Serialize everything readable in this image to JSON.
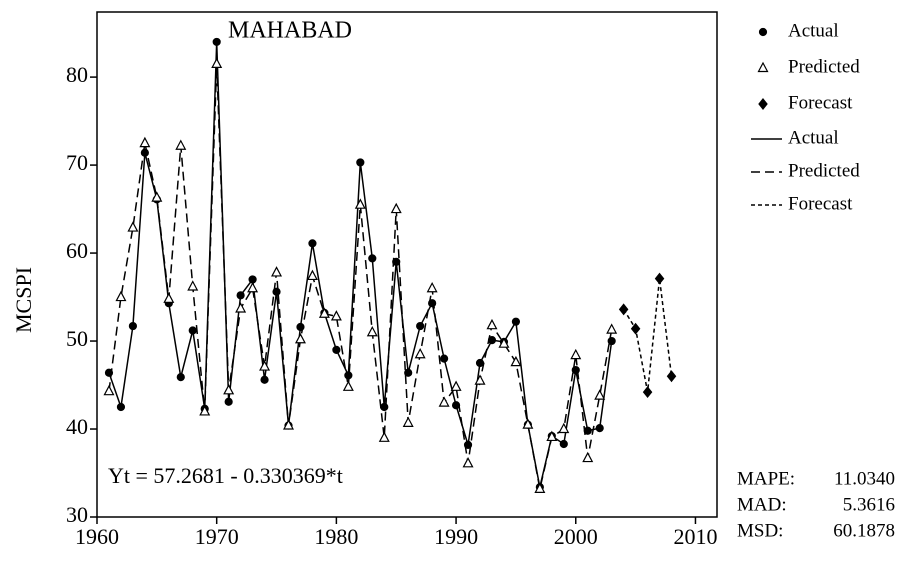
{
  "chart_data": {
    "type": "line",
    "title": "MAHABAD",
    "y_label": "MCSPI",
    "annotation": "Yt = 57.2681 - 0.330369*t",
    "xlim": [
      1960,
      2011.8
    ],
    "ylim": [
      30,
      87.4
    ],
    "xticks": [
      1960,
      1970,
      1980,
      1990,
      2000,
      2010
    ],
    "yticks": [
      30,
      40,
      50,
      60,
      70,
      80
    ],
    "series": [
      {
        "name": "Actual",
        "color": "#000000",
        "marker": "circle",
        "line": "solid",
        "x": [
          1961,
          1962,
          1963,
          1964,
          1965,
          1966,
          1967,
          1968,
          1969,
          1970,
          1971,
          1972,
          1973,
          1974,
          1975,
          1976,
          1977,
          1978,
          1979,
          1980,
          1981,
          1982,
          1983,
          1984,
          1985,
          1986,
          1987,
          1988,
          1989,
          1990,
          1991,
          1992,
          1993,
          1994,
          1995,
          1996,
          1997,
          1998,
          1999,
          2000,
          2001,
          2002,
          2003
        ],
        "values": [
          46.4,
          42.5,
          51.7,
          71.4,
          66.1,
          54.3,
          45.9,
          51.2,
          42.3,
          84,
          43.1,
          55.2,
          57,
          45.6,
          55.6,
          40.4,
          51.6,
          61.1,
          53.2,
          49,
          46.1,
          70.3,
          59.4,
          42.5,
          59,
          46.4,
          51.7,
          54.3,
          48,
          42.7,
          38.2,
          47.5,
          50.1,
          49.9,
          52.2,
          40.5,
          33.4,
          39.2,
          38.3,
          46.7,
          39.8,
          40.1,
          50
        ]
      },
      {
        "name": "Predicted",
        "color": "#000000",
        "marker": "triangle",
        "line": "dashed",
        "x": [
          1961,
          1962,
          1963,
          1964,
          1965,
          1966,
          1967,
          1968,
          1969,
          1970,
          1971,
          1972,
          1973,
          1974,
          1975,
          1976,
          1977,
          1978,
          1979,
          1980,
          1981,
          1982,
          1983,
          1984,
          1985,
          1986,
          1987,
          1988,
          1989,
          1990,
          1991,
          1992,
          1993,
          1994,
          1995,
          1996,
          1997,
          1998,
          1999,
          2000,
          2001,
          2002,
          2003
        ],
        "values": [
          44.3,
          55,
          62.9,
          72.5,
          66.3,
          54.8,
          72.2,
          56.2,
          42,
          81.5,
          44.4,
          53.7,
          56,
          47.1,
          57.8,
          40.4,
          50.2,
          57.4,
          53.1,
          52.8,
          44.8,
          65.5,
          51,
          39,
          65,
          40.7,
          48.5,
          56,
          43,
          44.8,
          36.1,
          45.5,
          51.8,
          49.7,
          47.6,
          40.5,
          33.2,
          39.1,
          40,
          48.4,
          36.7,
          43.8,
          51.3
        ]
      },
      {
        "name": "Forecast",
        "color": "#000000",
        "marker": "diamond",
        "line": "dotted",
        "x": [
          2004,
          2005,
          2006,
          2007,
          2008
        ],
        "values": [
          53.6,
          51.4,
          44.2,
          57.1,
          46
        ]
      }
    ],
    "stats": [
      {
        "label": "MAPE:",
        "value": "11.0340"
      },
      {
        "label": "MAD:",
        "value": "5.3616"
      },
      {
        "label": "MSD:",
        "value": "60.1878"
      }
    ]
  }
}
